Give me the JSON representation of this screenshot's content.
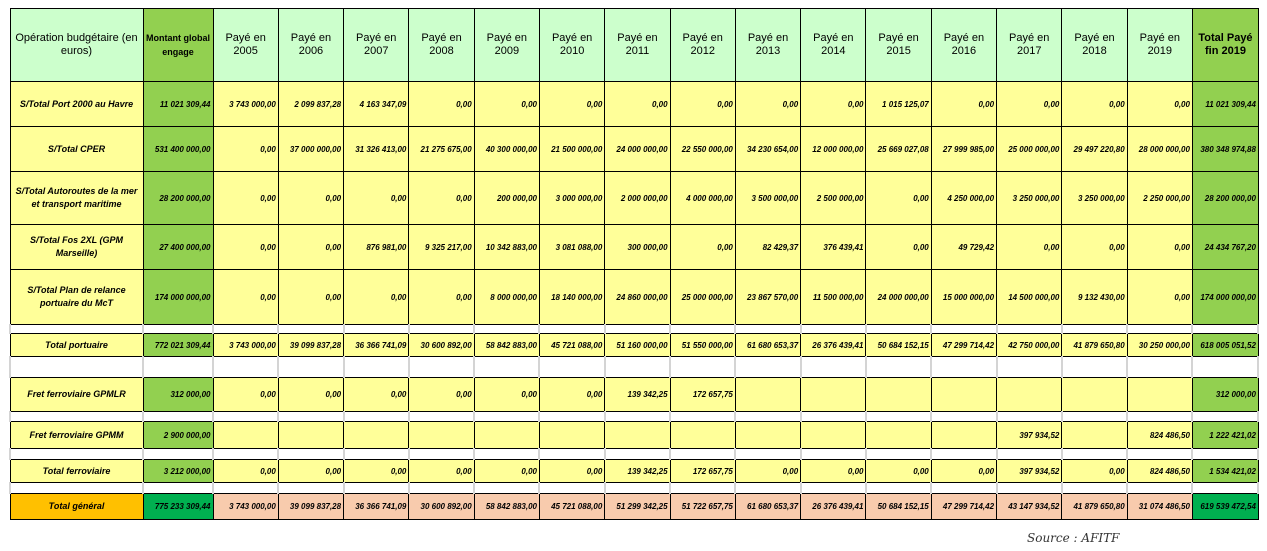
{
  "header": {
    "operation": "Opération budgétaire (en euros)",
    "montant": "Montant global engage",
    "years": [
      "Payé en 2005",
      "Payé en 2006",
      "Payé en 2007",
      "Payé en 2008",
      "Payé en 2009",
      "Payé en 2010",
      "Payé en 2011",
      "Payé en 2012",
      "Payé en 2013",
      "Payé en 2014",
      "Payé en 2015",
      "Payé en 2016",
      "Payé en 2017",
      "Payé en 2018",
      "Payé en 2019"
    ],
    "total": "Total Payé fin 2019"
  },
  "rows": [
    {
      "label": "S/Total Port 2000 au Havre",
      "montant": "11 021 309,44",
      "values": [
        "3 743 000,00",
        "2 099 837,28",
        "4 163 347,09",
        "0,00",
        "0,00",
        "0,00",
        "0,00",
        "0,00",
        "0,00",
        "0,00",
        "1 015 125,07",
        "0,00",
        "0,00",
        "0,00",
        "0,00"
      ],
      "total": "11 021 309,44"
    },
    {
      "label": "S/Total CPER",
      "montant": "531 400 000,00",
      "values": [
        "0,00",
        "37 000 000,00",
        "31 326 413,00",
        "21 275 675,00",
        "40 300 000,00",
        "21 500 000,00",
        "24 000 000,00",
        "22 550 000,00",
        "34 230 654,00",
        "12 000 000,00",
        "25 669 027,08",
        "27 999 985,00",
        "25 000 000,00",
        "29 497 220,80",
        "28 000 000,00"
      ],
      "total": "380 348 974,88"
    },
    {
      "label": "S/Total Autoroutes de la mer et transport maritime",
      "montant": "28 200 000,00",
      "values": [
        "0,00",
        "0,00",
        "0,00",
        "0,00",
        "200 000,00",
        "3 000 000,00",
        "2 000 000,00",
        "4 000 000,00",
        "3 500 000,00",
        "2 500 000,00",
        "0,00",
        "4 250 000,00",
        "3 250 000,00",
        "3 250 000,00",
        "2 250 000,00"
      ],
      "total": "28 200 000,00"
    },
    {
      "label": "S/Total Fos 2XL (GPM Marseille)",
      "montant": "27 400 000,00",
      "values": [
        "0,00",
        "0,00",
        "876 981,00",
        "9 325 217,00",
        "10 342 883,00",
        "3 081 088,00",
        "300 000,00",
        "0,00",
        "82 429,37",
        "376 439,41",
        "0,00",
        "49 729,42",
        "0,00",
        "0,00",
        "0,00"
      ],
      "total": "24 434 767,20"
    },
    {
      "label": "S/Total Plan de relance portuaire du McT",
      "montant": "174 000 000,00",
      "values": [
        "0,00",
        "0,00",
        "0,00",
        "0,00",
        "8 000 000,00",
        "18 140 000,00",
        "24 860 000,00",
        "25 000 000,00",
        "23 867 570,00",
        "11 500 000,00",
        "24 000 000,00",
        "15 000 000,00",
        "14 500 000,00",
        "9 132 430,00",
        "0,00"
      ],
      "total": "174 000 000,00"
    },
    {
      "gap": true
    },
    {
      "label": "Total portuaire",
      "montant": "772 021 309,44",
      "values": [
        "3 743 000,00",
        "39 099 837,28",
        "36 366 741,09",
        "30 600 892,00",
        "58 842 883,00",
        "45 721 088,00",
        "51 160 000,00",
        "51 550 000,00",
        "61 680 653,37",
        "26 376 439,41",
        "50 684 152,15",
        "47 299 714,42",
        "42 750 000,00",
        "41 879 650,80",
        "30 250 000,00"
      ],
      "total": "618 005 051,52"
    },
    {
      "gap": true
    },
    {
      "gap": true
    },
    {
      "label": "Fret ferroviaire GPMLR",
      "montant": "312 000,00",
      "values": [
        "0,00",
        "0,00",
        "0,00",
        "0,00",
        "0,00",
        "0,00",
        "139 342,25",
        "172 657,75",
        "",
        "",
        "",
        "",
        "",
        "",
        ""
      ],
      "total": "312 000,00"
    },
    {
      "gap": true
    },
    {
      "label": "Fret ferroviaire GPMM",
      "montant": "2 900 000,00",
      "values": [
        "",
        "",
        "",
        "",
        "",
        "",
        "",
        "",
        "",
        "",
        "",
        "",
        "397 934,52",
        "",
        "824 486,50"
      ],
      "total": "1 222 421,02"
    },
    {
      "gap": true
    },
    {
      "label": "Total ferroviaire",
      "montant": "3 212 000,00",
      "values": [
        "0,00",
        "0,00",
        "0,00",
        "0,00",
        "0,00",
        "0,00",
        "139 342,25",
        "172 657,75",
        "0,00",
        "0,00",
        "0,00",
        "0,00",
        "397 934,52",
        "0,00",
        "824 486,50"
      ],
      "total": "1 534 421,02"
    },
    {
      "gap": true
    },
    {
      "label": "Total général",
      "montant": "775 233 309,44",
      "values": [
        "3 743 000,00",
        "39 099 837,28",
        "36 366 741,09",
        "30 600 892,00",
        "58 842 883,00",
        "45 721 088,00",
        "51 299 342,25",
        "51 722 657,75",
        "61 680 653,37",
        "26 376 439,41",
        "50 684 152,15",
        "47 299 714,42",
        "43 147 934,52",
        "41 879 650,80",
        "31 074 486,50"
      ],
      "total": "619 539 472,54",
      "grand": true
    }
  ],
  "source": "Source : AFITF",
  "colors": {
    "header": "#ccffcc",
    "cells": "#ffff99",
    "montant": "#92d050",
    "grand_label": "#ffc000",
    "grand_values": "#f8cbad",
    "grand_total": "#00b050"
  }
}
